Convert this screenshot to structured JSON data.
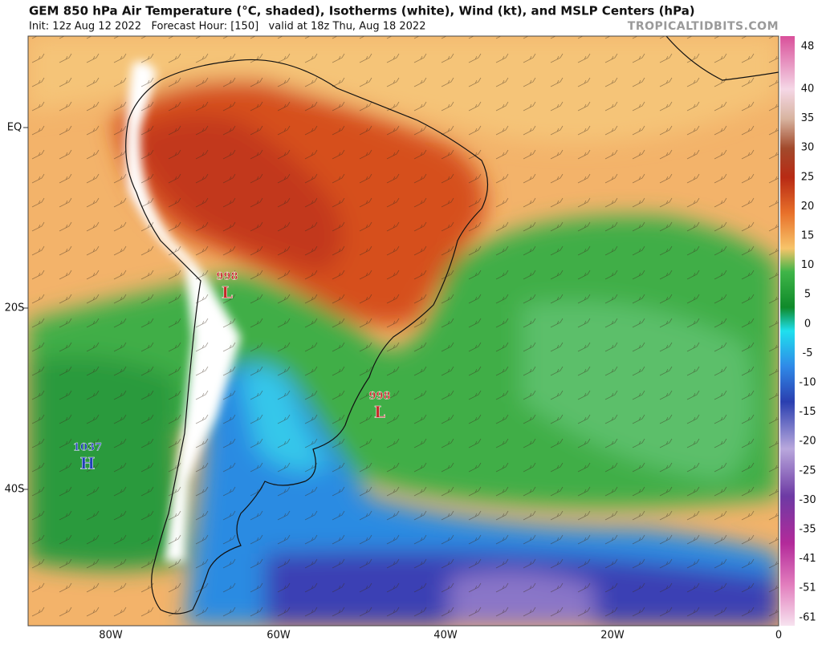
{
  "header": {
    "title": "GEM 850 hPa Air Temperature (°C, shaded), Isotherms (white), Wind (kt), and MSLP Centers (hPa)",
    "subtitle": "Init: 12z Aug 12 2022   Forecast Hour: [150]   valid at 18z Thu, Aug 18 2022",
    "credit": "TROPICALTIDBITS.COM"
  },
  "colorbar": {
    "labels": [
      "48",
      "40",
      "35",
      "30",
      "25",
      "20",
      "15",
      "10",
      "5",
      "0",
      "-5",
      "-10",
      "-15",
      "-20",
      "-25",
      "-30",
      "-35",
      "-41",
      "-51",
      "-61"
    ]
  },
  "axes": {
    "lat_labels": [
      "EQ",
      "20S",
      "40S"
    ],
    "lon_labels": [
      "80W",
      "60W",
      "40W",
      "20W",
      "0"
    ]
  },
  "centers": [
    {
      "pressure": "998",
      "letter": "L"
    },
    {
      "pressure": "998",
      "letter": "L"
    },
    {
      "pressure": "1037",
      "letter": "H"
    }
  ]
}
